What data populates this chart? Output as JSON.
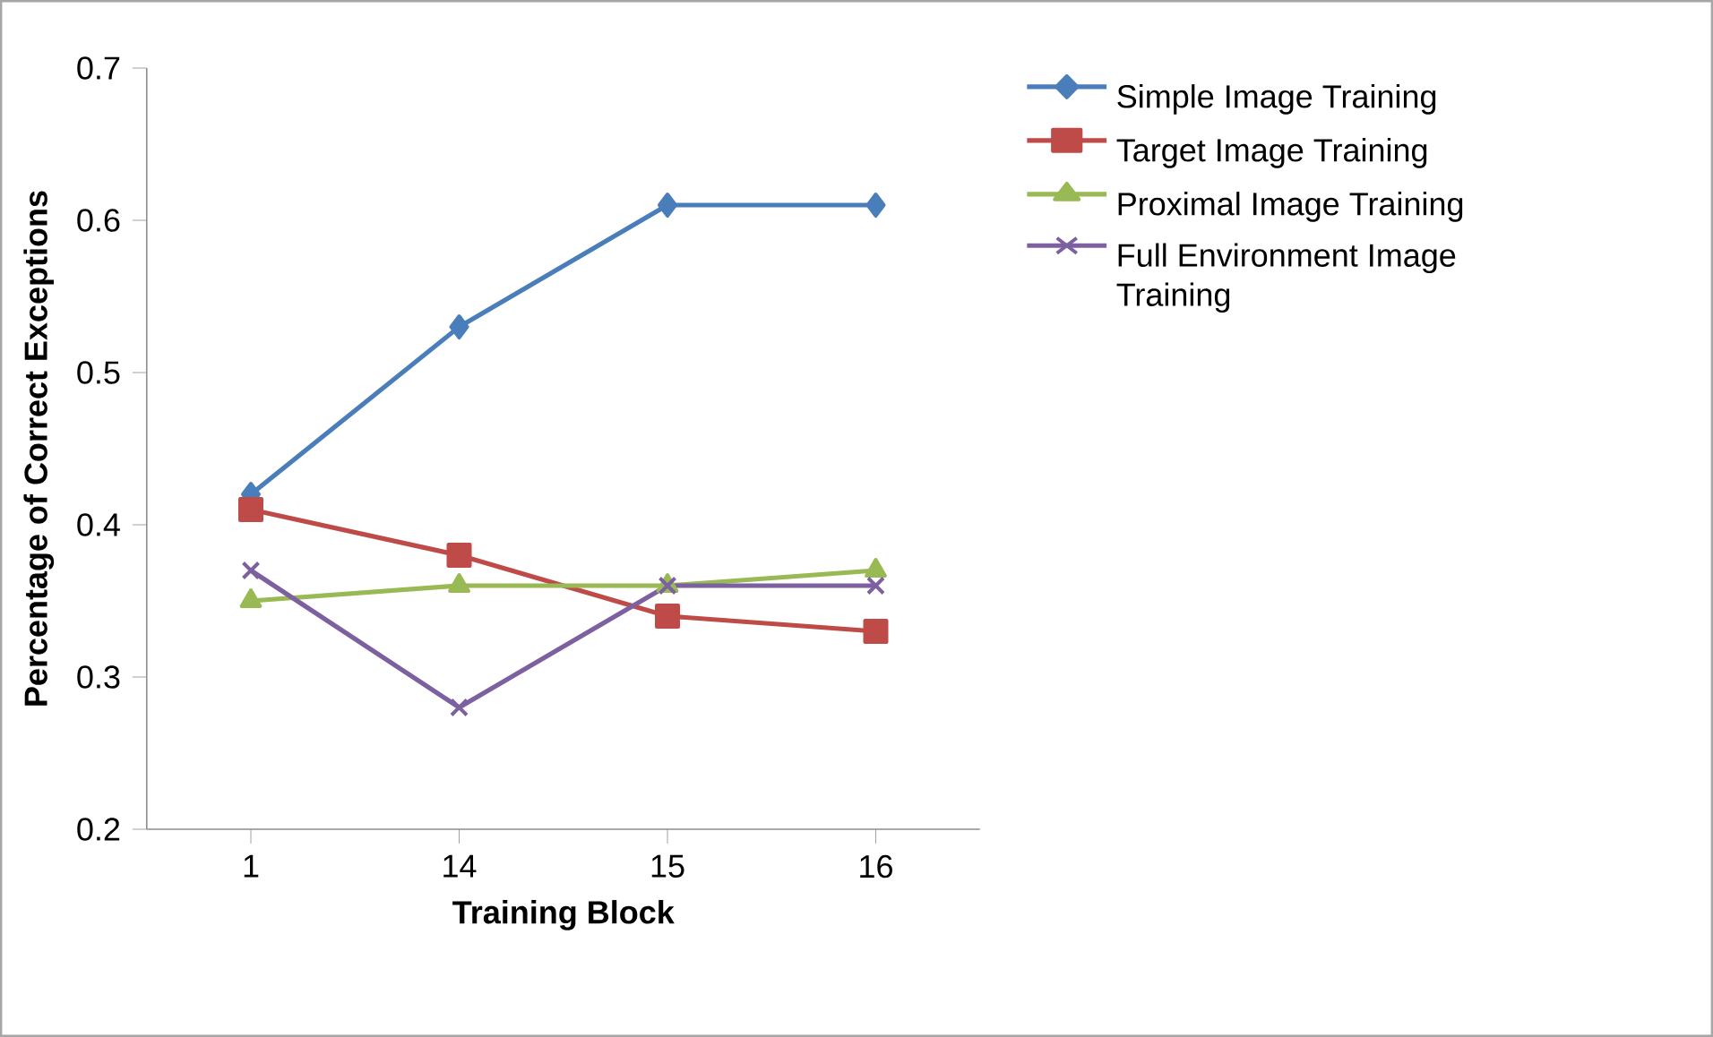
{
  "chart_data": {
    "type": "line",
    "xlabel": "Training Block",
    "ylabel": "Percentage of Correct Exceptions",
    "categories": [
      "1",
      "14",
      "15",
      "16"
    ],
    "series": [
      {
        "name": "Simple Image Training",
        "color": "#4a7ebb",
        "marker": "diamond",
        "values": [
          0.42,
          0.53,
          0.61,
          0.61
        ]
      },
      {
        "name": "Target Image Training",
        "color": "#be4b48",
        "marker": "square",
        "values": [
          0.41,
          0.38,
          0.34,
          0.33
        ]
      },
      {
        "name": "Proximal Image Training",
        "color": "#98b954",
        "marker": "triangle",
        "values": [
          0.35,
          0.36,
          0.36,
          0.37
        ]
      },
      {
        "name": "Full Environment Image Training",
        "color": "#7d60a0",
        "marker": "cross",
        "values": [
          0.37,
          0.28,
          0.36,
          0.36
        ]
      }
    ],
    "ylim": [
      0.2,
      0.7
    ],
    "yticks": [
      0.2,
      0.3,
      0.4,
      0.5,
      0.6,
      0.7
    ],
    "grid": false,
    "legend": "right",
    "line_style": "solid"
  }
}
